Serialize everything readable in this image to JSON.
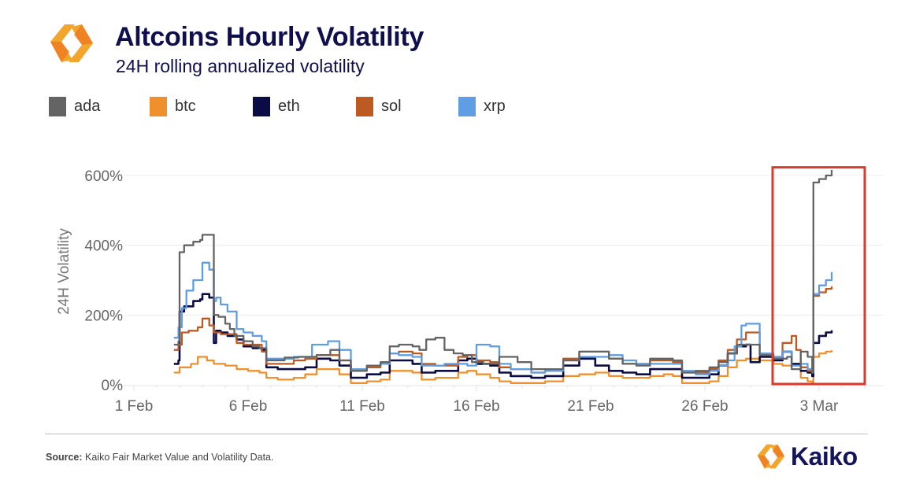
{
  "header": {
    "title": "Altcoins Hourly Volatility",
    "subtitle": "24H rolling annualized volatility",
    "logo_icon": "kaiko-hexagon-logo-icon"
  },
  "legend": [
    {
      "name": "ada",
      "color": "#646464"
    },
    {
      "name": "btc",
      "color": "#f0902d"
    },
    {
      "name": "eth",
      "color": "#0b0b45"
    },
    {
      "name": "sol",
      "color": "#bd5a22"
    },
    {
      "name": "xrp",
      "color": "#5f9ee3"
    }
  ],
  "footer": {
    "source_label": "Source:",
    "source_text": " Kaiko Fair Market Value and Volatility Data.",
    "brand_name": "Kaiko",
    "brand_icon": "kaiko-hexagon-logo-icon"
  },
  "chart_data": {
    "type": "line",
    "title": "Altcoins Hourly Volatility",
    "subtitle": "24H rolling annualized volatility",
    "xlabel": "",
    "ylabel": "24H Volatility",
    "x_unit": "days since 1 Feb",
    "xlim": [
      -0.4,
      32.8
    ],
    "ylim": [
      -15,
      625
    ],
    "x_ticks": [
      {
        "value": 0,
        "label": "1 Feb"
      },
      {
        "value": 5,
        "label": "6 Feb"
      },
      {
        "value": 10,
        "label": "11 Feb"
      },
      {
        "value": 15,
        "label": "16 Feb"
      },
      {
        "value": 20,
        "label": "21 Feb"
      },
      {
        "value": 25,
        "label": "26 Feb"
      },
      {
        "value": 30,
        "label": "3 Mar"
      }
    ],
    "y_ticks": [
      {
        "value": 0,
        "label": "0%"
      },
      {
        "value": 200,
        "label": "200%"
      },
      {
        "value": 400,
        "label": "400%"
      },
      {
        "value": 600,
        "label": "600%"
      }
    ],
    "grid": "horizontal",
    "legend_position": "top-left",
    "highlight_box": {
      "x_range": [
        28.0,
        32.0
      ],
      "y_range": [
        0,
        620
      ],
      "color": "#d93a2b"
    },
    "series": [
      {
        "name": "ada",
        "color": "#646464",
        "x": [
          1.75,
          1.95,
          2.0,
          2.2,
          2.6,
          2.9,
          3.0,
          3.4,
          3.5,
          3.7,
          4.0,
          4.2,
          4.4,
          4.8,
          5.2,
          5.5,
          5.8,
          6.3,
          6.6,
          7.2,
          8.0,
          8.6,
          9.0,
          9.5,
          10.2,
          10.8,
          11.2,
          11.6,
          12.2,
          12.5,
          12.8,
          13.2,
          13.6,
          14.0,
          14.4,
          14.8,
          15.3,
          16.0,
          16.8,
          17.4,
          18.0,
          18.8,
          19.5,
          20.2,
          20.8,
          21.4,
          22.0,
          22.6,
          23.2,
          23.6,
          24.0,
          24.6,
          25.2,
          25.6,
          26.0,
          26.4,
          26.8,
          27.4,
          28.0,
          28.6,
          28.8,
          29.2,
          29.5,
          29.7,
          29.75,
          30.0,
          30.3,
          30.55
        ],
        "values": [
          115,
          125,
          380,
          400,
          410,
          415,
          430,
          430,
          200,
          195,
          175,
          160,
          140,
          125,
          110,
          105,
          70,
          70,
          78,
          80,
          85,
          100,
          70,
          40,
          55,
          65,
          110,
          115,
          110,
          100,
          130,
          135,
          100,
          90,
          85,
          65,
          60,
          80,
          65,
          45,
          45,
          70,
          95,
          95,
          75,
          60,
          55,
          75,
          75,
          70,
          35,
          40,
          50,
          65,
          90,
          115,
          115,
          85,
          75,
          80,
          45,
          95,
          80,
          35,
          580,
          590,
          600,
          616
        ]
      },
      {
        "name": "xrp",
        "color": "#5f9ee3",
        "x": [
          1.75,
          1.95,
          2.1,
          2.3,
          2.6,
          2.9,
          3.0,
          3.3,
          3.5,
          3.6,
          3.8,
          4.1,
          4.5,
          4.8,
          5.2,
          5.6,
          5.8,
          6.3,
          7.0,
          7.5,
          7.8,
          8.5,
          9.0,
          9.5,
          10.2,
          10.8,
          11.2,
          11.6,
          12.2,
          12.6,
          13.2,
          13.6,
          14.2,
          14.6,
          15.0,
          15.6,
          16.0,
          16.5,
          17.4,
          18.0,
          18.8,
          19.5,
          20.2,
          20.8,
          21.4,
          22.0,
          22.6,
          23.2,
          23.6,
          24.0,
          24.6,
          25.2,
          25.6,
          26.0,
          26.3,
          26.6,
          26.8,
          27.4,
          28.0,
          28.4,
          28.8,
          29.2,
          29.5,
          29.7,
          29.75,
          30.0,
          30.3,
          30.55
        ],
        "values": [
          135,
          165,
          220,
          270,
          300,
          300,
          350,
          330,
          240,
          250,
          230,
          210,
          160,
          150,
          140,
          125,
          75,
          75,
          80,
          80,
          115,
          125,
          100,
          45,
          55,
          60,
          90,
          85,
          80,
          55,
          55,
          60,
          60,
          55,
          115,
          110,
          60,
          45,
          35,
          40,
          70,
          80,
          80,
          85,
          70,
          60,
          60,
          60,
          60,
          40,
          30,
          40,
          55,
          70,
          110,
          170,
          175,
          90,
          80,
          95,
          55,
          60,
          45,
          35,
          260,
          285,
          300,
          323
        ]
      },
      {
        "name": "sol",
        "color": "#bd5a22",
        "x": [
          1.75,
          1.95,
          2.1,
          2.4,
          2.8,
          3.0,
          3.3,
          3.5,
          3.8,
          4.1,
          4.5,
          4.8,
          5.2,
          5.6,
          5.8,
          6.3,
          7.0,
          7.5,
          8.0,
          8.6,
          9.0,
          9.5,
          10.2,
          10.8,
          11.2,
          11.6,
          12.2,
          12.6,
          13.2,
          13.6,
          14.2,
          14.6,
          15.0,
          15.6,
          16.0,
          16.5,
          17.4,
          18.0,
          18.8,
          19.5,
          20.2,
          20.8,
          21.4,
          22.0,
          22.6,
          23.2,
          23.6,
          24.0,
          24.6,
          25.2,
          25.6,
          26.0,
          26.4,
          26.8,
          27.4,
          28.0,
          28.4,
          28.8,
          29.0,
          29.2,
          29.5,
          29.7,
          29.75,
          30.0,
          30.3,
          30.55
        ],
        "values": [
          100,
          115,
          150,
          155,
          165,
          190,
          170,
          150,
          145,
          145,
          120,
          115,
          115,
          95,
          60,
          60,
          70,
          75,
          85,
          85,
          70,
          40,
          50,
          60,
          90,
          95,
          90,
          60,
          55,
          55,
          80,
          85,
          70,
          65,
          50,
          45,
          35,
          40,
          75,
          95,
          95,
          75,
          60,
          60,
          70,
          70,
          65,
          35,
          35,
          45,
          70,
          100,
          130,
          150,
          90,
          80,
          120,
          140,
          100,
          50,
          40,
          35,
          255,
          265,
          275,
          282
        ]
      },
      {
        "name": "eth",
        "color": "#0b0b45",
        "x": [
          1.75,
          1.95,
          2.0,
          2.2,
          2.6,
          2.9,
          3.0,
          3.3,
          3.5,
          3.6,
          3.8,
          4.1,
          4.5,
          4.8,
          5.2,
          5.6,
          5.8,
          6.3,
          7.0,
          7.5,
          8.0,
          8.6,
          9.0,
          9.5,
          10.2,
          10.8,
          11.2,
          11.6,
          12.2,
          12.6,
          13.2,
          13.6,
          14.2,
          14.6,
          15.0,
          15.6,
          16.0,
          16.5,
          17.4,
          18.0,
          18.8,
          19.5,
          20.2,
          20.8,
          21.4,
          22.0,
          22.6,
          23.2,
          23.6,
          24.0,
          24.6,
          25.2,
          25.6,
          26.0,
          26.4,
          26.8,
          27.0,
          27.4,
          28.0,
          28.4,
          28.8,
          29.2,
          29.5,
          29.7,
          29.75,
          30.0,
          30.3,
          30.55
        ],
        "values": [
          60,
          70,
          210,
          225,
          240,
          245,
          260,
          250,
          120,
          155,
          150,
          140,
          130,
          110,
          105,
          100,
          50,
          45,
          45,
          50,
          75,
          70,
          55,
          20,
          30,
          35,
          70,
          70,
          60,
          35,
          40,
          40,
          70,
          75,
          60,
          55,
          35,
          25,
          20,
          25,
          55,
          75,
          55,
          40,
          35,
          30,
          45,
          45,
          45,
          20,
          20,
          30,
          55,
          90,
          110,
          115,
          65,
          80,
          70,
          95,
          60,
          40,
          35,
          25,
          120,
          140,
          150,
          156
        ]
      },
      {
        "name": "btc",
        "color": "#f0902d",
        "x": [
          1.75,
          2.0,
          2.5,
          2.8,
          3.2,
          3.5,
          4.0,
          4.5,
          5.0,
          5.5,
          5.8,
          6.3,
          7.0,
          7.5,
          8.0,
          8.6,
          9.0,
          9.5,
          10.2,
          10.8,
          11.2,
          11.6,
          12.2,
          12.6,
          13.2,
          13.6,
          14.2,
          14.6,
          15.0,
          15.6,
          16.0,
          16.5,
          17.4,
          18.0,
          18.8,
          19.5,
          20.2,
          20.8,
          21.4,
          22.0,
          22.6,
          23.2,
          23.6,
          24.0,
          24.6,
          25.2,
          25.6,
          26.0,
          26.4,
          26.8,
          27.4,
          28.0,
          28.4,
          28.8,
          29.2,
          29.5,
          29.7,
          29.75,
          30.0,
          30.3,
          30.55
        ],
        "values": [
          35,
          50,
          60,
          80,
          70,
          60,
          55,
          45,
          40,
          35,
          20,
          15,
          20,
          30,
          45,
          45,
          30,
          5,
          10,
          15,
          40,
          40,
          35,
          15,
          20,
          20,
          35,
          40,
          30,
          20,
          10,
          5,
          5,
          10,
          25,
          30,
          35,
          25,
          20,
          20,
          25,
          30,
          25,
          5,
          5,
          10,
          25,
          50,
          70,
          75,
          70,
          60,
          55,
          60,
          20,
          10,
          5,
          80,
          90,
          95,
          99
        ]
      }
    ]
  }
}
